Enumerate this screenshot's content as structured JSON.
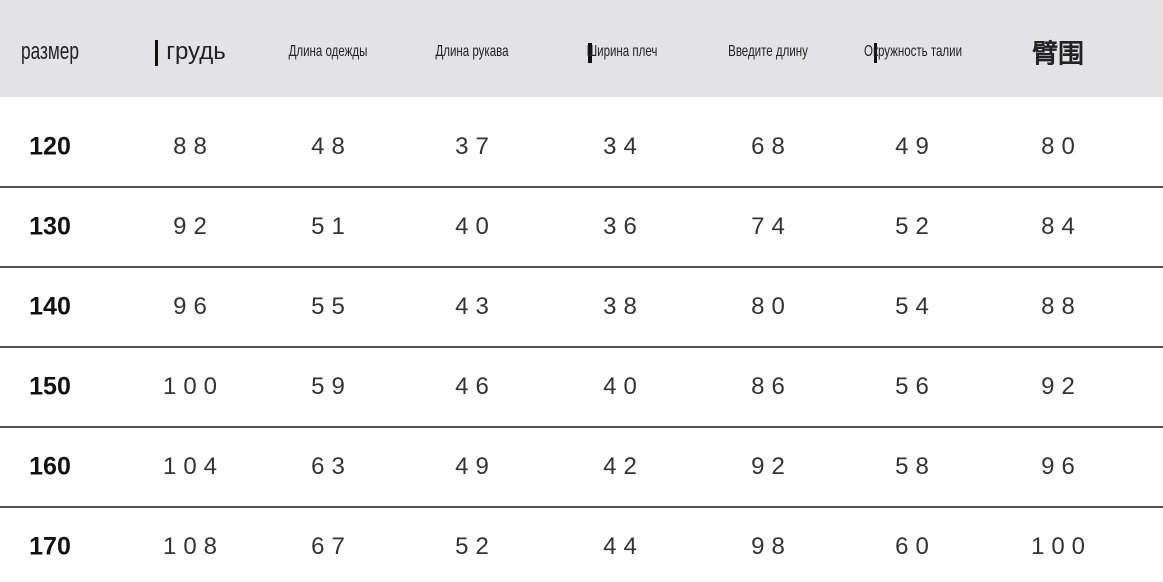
{
  "table": {
    "header": [
      "размер",
      "грудь",
      "Длина одежды",
      "Длина рукава",
      "Ширина плеч",
      "Введите длину",
      "Окружность талии",
      "臂围"
    ],
    "rows": [
      [
        120,
        88,
        48,
        37,
        34,
        68,
        49,
        80
      ],
      [
        130,
        92,
        51,
        40,
        36,
        74,
        52,
        84
      ],
      [
        140,
        96,
        55,
        43,
        38,
        80,
        54,
        88
      ],
      [
        150,
        100,
        59,
        46,
        40,
        86,
        56,
        92
      ],
      [
        160,
        104,
        63,
        49,
        42,
        92,
        58,
        96
      ],
      [
        170,
        108,
        67,
        52,
        44,
        98,
        60,
        100
      ]
    ]
  }
}
